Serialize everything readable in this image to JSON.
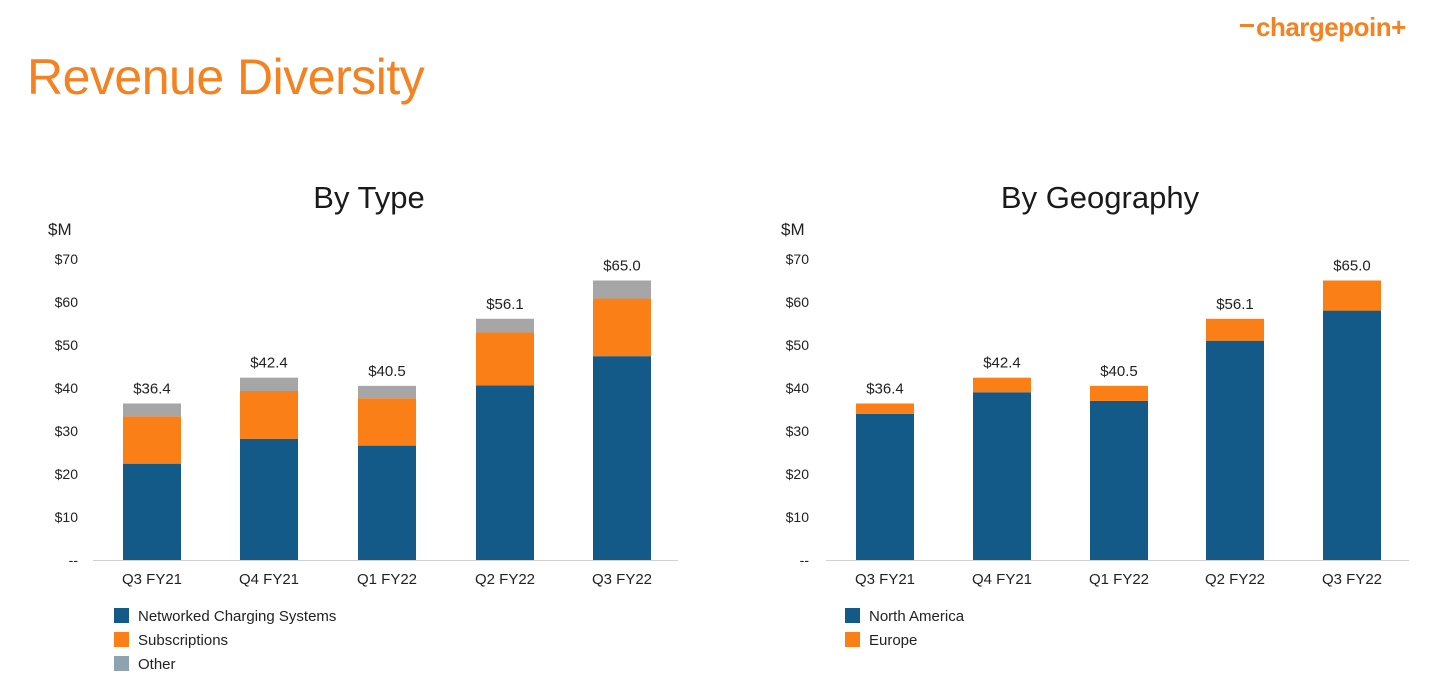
{
  "page": {
    "title": "Revenue Diversity",
    "logo": "chargepoin+"
  },
  "colors": {
    "title": "#f58220",
    "networked": "#135a89",
    "subscriptions": "#f97f16",
    "other": "#a6a6a6",
    "north_america": "#135a89",
    "europe": "#f97f16"
  },
  "chart_data": [
    {
      "type": "bar",
      "stacked": true,
      "title": "By Type",
      "ylabel": "$M",
      "ylim": [
        0,
        70
      ],
      "yticks": [
        {
          "value": 0,
          "label": "--"
        },
        {
          "value": 10,
          "label": "$10"
        },
        {
          "value": 20,
          "label": "$20"
        },
        {
          "value": 30,
          "label": "$30"
        },
        {
          "value": 40,
          "label": "$40"
        },
        {
          "value": 50,
          "label": "$50"
        },
        {
          "value": 60,
          "label": "$60"
        },
        {
          "value": 70,
          "label": "$70"
        }
      ],
      "categories": [
        "Q3 FY21",
        "Q4 FY21",
        "Q1 FY22",
        "Q2 FY22",
        "Q3 FY22"
      ],
      "totals": [
        "$36.4",
        "$42.4",
        "$40.5",
        "$56.1",
        "$65.0"
      ],
      "series": [
        {
          "name": "Networked Charging Systems",
          "color": "#135a89",
          "values": [
            22.4,
            28.2,
            26.6,
            40.6,
            47.4
          ]
        },
        {
          "name": "Subscriptions",
          "color": "#f97f16",
          "values": [
            11.0,
            11.1,
            11.0,
            12.3,
            13.4
          ]
        },
        {
          "name": "Other",
          "color": "#a6a6a6",
          "values": [
            3.0,
            3.1,
            2.9,
            3.2,
            4.2
          ]
        }
      ],
      "legend_position": "bottom-left",
      "legend_colors": [
        "#135a89",
        "#f97f16",
        "#8ea3b0"
      ]
    },
    {
      "type": "bar",
      "stacked": true,
      "title": "By Geography",
      "ylabel": "$M",
      "ylim": [
        0,
        70
      ],
      "yticks": [
        {
          "value": 0,
          "label": "--"
        },
        {
          "value": 10,
          "label": "$10"
        },
        {
          "value": 20,
          "label": "$20"
        },
        {
          "value": 30,
          "label": "$30"
        },
        {
          "value": 40,
          "label": "$40"
        },
        {
          "value": 50,
          "label": "$50"
        },
        {
          "value": 60,
          "label": "$60"
        },
        {
          "value": 70,
          "label": "$70"
        }
      ],
      "categories": [
        "Q3 FY21",
        "Q4 FY21",
        "Q1 FY22",
        "Q2 FY22",
        "Q3 FY22"
      ],
      "totals": [
        "$36.4",
        "$42.4",
        "$40.5",
        "$56.1",
        "$65.0"
      ],
      "series": [
        {
          "name": "North America",
          "color": "#135a89",
          "values": [
            34.0,
            39.0,
            37.0,
            51.0,
            58.0
          ]
        },
        {
          "name": "Europe",
          "color": "#f97f16",
          "values": [
            2.4,
            3.4,
            3.5,
            5.1,
            7.0
          ]
        }
      ],
      "legend_position": "bottom-left",
      "legend_colors": [
        "#135a89",
        "#f97f16"
      ]
    }
  ]
}
